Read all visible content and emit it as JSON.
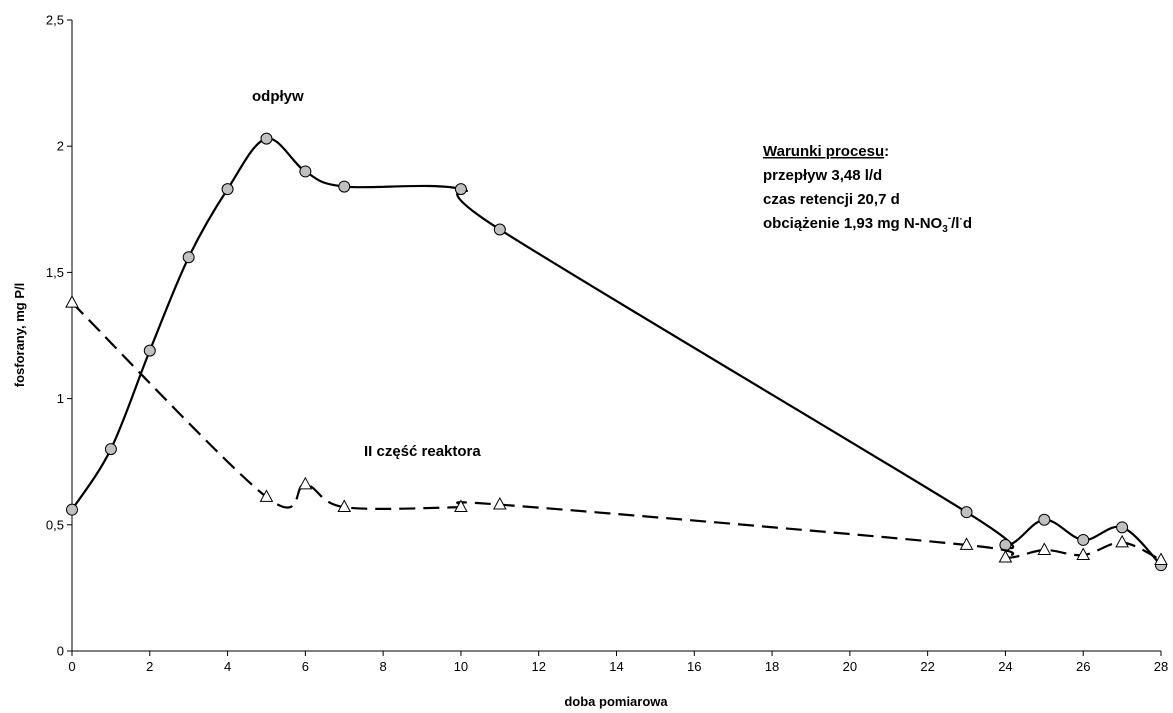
{
  "chart_data": {
    "type": "line",
    "xlabel": "doba pomiarowa",
    "ylabel": "fosforany, mg P/l",
    "xlim": [
      0,
      28
    ],
    "ylim": [
      0,
      2.5
    ],
    "x_ticks": [
      "0",
      "2",
      "4",
      "6",
      "8",
      "10",
      "12",
      "14",
      "16",
      "18",
      "20",
      "22",
      "24",
      "26",
      "28"
    ],
    "y_ticks": [
      "0",
      "0,5",
      "1",
      "1,5",
      "2",
      "2,5"
    ],
    "grid": false,
    "series": [
      {
        "name": "odpływ",
        "style": "solid",
        "marker": "circle",
        "color": "#000000",
        "marker_fill": "#c0c0c0",
        "x": [
          0,
          1,
          2,
          3,
          4,
          5,
          6,
          7,
          10,
          11,
          23,
          24,
          25,
          26,
          27,
          28
        ],
        "y": [
          0.56,
          0.8,
          1.19,
          1.56,
          1.83,
          2.03,
          1.9,
          1.84,
          1.83,
          1.67,
          0.55,
          0.42,
          0.52,
          0.44,
          0.49,
          0.34
        ]
      },
      {
        "name": "II część reaktora",
        "style": "dashed",
        "marker": "triangle",
        "color": "#000000",
        "marker_fill": "#ffffff",
        "x": [
          0,
          5,
          6,
          7,
          10,
          11,
          23,
          24,
          25,
          26,
          27,
          28
        ],
        "y": [
          1.38,
          0.61,
          0.66,
          0.57,
          0.57,
          0.58,
          0.42,
          0.37,
          0.4,
          0.38,
          0.43,
          0.36
        ]
      }
    ],
    "annotations": {
      "heading": "Warunki procesu",
      "heading_suffix": ":",
      "line1": "przepływ 3,48 l/d",
      "line2": "czas retencji 20,7 d",
      "line3_prefix": "obciążenie 1,93 mg N-NO",
      "line3_sub": "3",
      "line3_sup": "-",
      "line3_mid": "/l",
      "line3_dot": "·",
      "line3_end": "d"
    }
  }
}
